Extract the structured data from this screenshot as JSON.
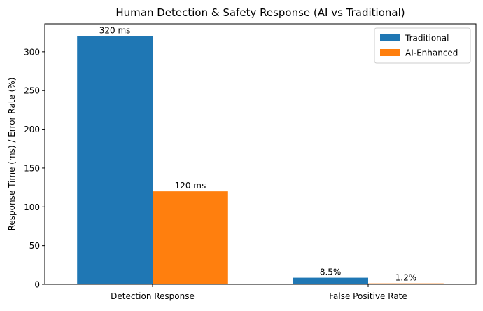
{
  "chart_data": {
    "type": "bar",
    "title": "Human Detection & Safety Response (AI vs Traditional)",
    "xlabel": "",
    "ylabel": "Response Time (ms) / Error Rate (%)",
    "categories": [
      "Detection Response",
      "False Positive Rate"
    ],
    "series": [
      {
        "name": "Traditional",
        "values": [
          320,
          8.5
        ],
        "labels": [
          "320 ms",
          "8.5%"
        ],
        "color": "#1f77b4"
      },
      {
        "name": "AI-Enhanced",
        "values": [
          120,
          1.2
        ],
        "labels": [
          "120 ms",
          "1.2%"
        ],
        "color": "#ff7f0e"
      }
    ],
    "ylim": [
      0,
      336
    ],
    "yticks": [
      0,
      50,
      100,
      150,
      200,
      250,
      300
    ],
    "grid": false,
    "legend": "top-right"
  }
}
